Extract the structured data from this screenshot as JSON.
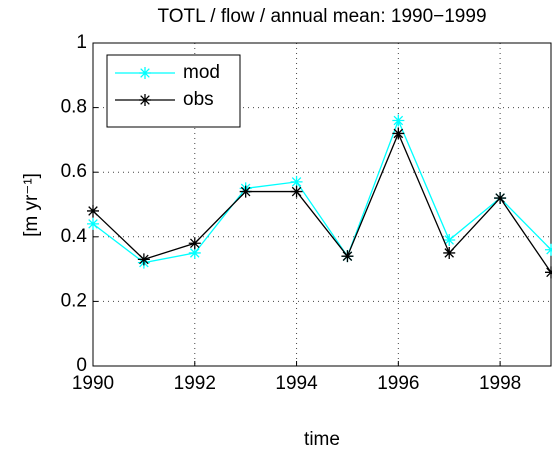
{
  "chart_data": {
    "type": "line",
    "title": "TOTL / flow / annual mean: 1990−1999",
    "x_label": "time",
    "y_label": "[m yr⁻¹]",
    "x": [
      1990,
      1991,
      1992,
      1993,
      1994,
      1995,
      1996,
      1997,
      1998,
      1999
    ],
    "series": [
      {
        "name": "mod",
        "color": "#00ffff",
        "values": [
          0.44,
          0.32,
          0.35,
          0.55,
          0.57,
          0.34,
          0.76,
          0.39,
          0.52,
          0.36
        ]
      },
      {
        "name": "obs",
        "color": "#000000",
        "values": [
          0.48,
          0.33,
          0.38,
          0.54,
          0.54,
          0.34,
          0.72,
          0.35,
          0.52,
          0.29
        ]
      }
    ],
    "xlim": [
      1990,
      1999
    ],
    "xticks": [
      1990,
      1992,
      1994,
      1996,
      1998
    ],
    "ylim": [
      0,
      1
    ],
    "yticks": [
      0,
      0.2,
      0.4,
      0.6,
      0.8,
      1
    ],
    "grid": true,
    "legend": "upper left"
  }
}
